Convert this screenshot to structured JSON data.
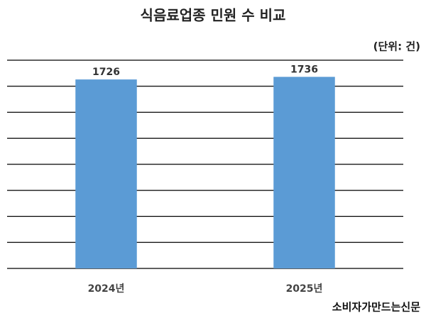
{
  "chart_data": {
    "type": "bar",
    "title": "식음료업종 민원 수 비교",
    "unit_note": "(단위: 건)",
    "source": "소비자가만드는신문",
    "categories": [
      "2024년",
      "2025년"
    ],
    "values": [
      1726,
      1736
    ],
    "color": "#5b9bd5",
    "ylim": [
      1000,
      1800
    ],
    "yticks": [
      1000,
      1100,
      1200,
      1300,
      1400,
      1500,
      1600,
      1700,
      1800
    ],
    "grid": true
  }
}
